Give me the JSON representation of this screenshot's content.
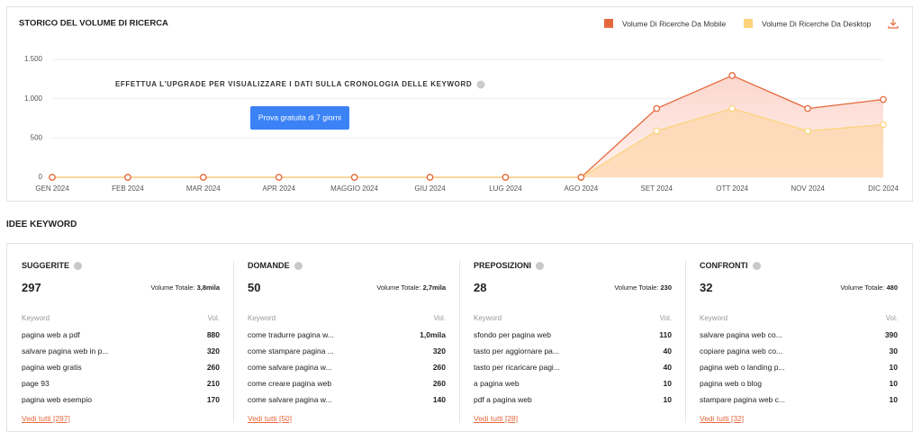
{
  "chart_data": {
    "type": "line",
    "title": "STORICO DEL VOLUME DI RICERCA",
    "categories": [
      "GEN 2024",
      "FEB 2024",
      "MAR 2024",
      "APR 2024",
      "MAGGIO 2024",
      "GIU 2024",
      "LUG 2024",
      "AGO 2024",
      "SET 2024",
      "OTT 2024",
      "NOV 2024",
      "DIC 2024"
    ],
    "series": [
      {
        "name": "Volume Di Ricerche Da Mobile",
        "color": "#e5683d",
        "values": [
          0,
          0,
          0,
          0,
          0,
          0,
          0,
          0,
          875,
          1295,
          875,
          990
        ]
      },
      {
        "name": "Volume Di Ricerche Da Desktop",
        "color": "#fcd37a",
        "values": [
          0,
          0,
          0,
          0,
          0,
          0,
          0,
          0,
          590,
          875,
          590,
          670
        ]
      }
    ],
    "ylim": [
      0,
      1500
    ],
    "yticks": [
      0,
      500,
      {
        "value": 1000,
        "label": "1.000"
      },
      {
        "value": 1500,
        "label": "1.500"
      }
    ],
    "grid": true,
    "legend": "top-right",
    "annotation": "EFFETTUA L'UPGRADE PER VISUALIZZARE I DATI SULLA CRONOLOGIA DELLE KEYWORD",
    "button": "Prova gratuita di 7 giorni"
  },
  "keywords": {
    "title": "IDEE KEYWORD",
    "total_label": "Volume Totale:",
    "columns": [
      "Keyword",
      "Vol."
    ],
    "panels": [
      {
        "title": "SUGGERITE",
        "count": "297",
        "total": "3,8mila",
        "rows": [
          [
            "pagina web a pdf",
            "880"
          ],
          [
            "salvare pagina web in p...",
            "320"
          ],
          [
            "pagina web gratis",
            "260"
          ],
          [
            "page 93",
            "210"
          ],
          [
            "pagina web esempio",
            "170"
          ]
        ],
        "link": "Vedi tutti [297]"
      },
      {
        "title": "DOMANDE",
        "count": "50",
        "total": "2,7mila",
        "rows": [
          [
            "come tradurre pagina w...",
            "1,0mila"
          ],
          [
            "come stampare pagina ...",
            "320"
          ],
          [
            "come salvare pagina w...",
            "260"
          ],
          [
            "come creare pagina web",
            "260"
          ],
          [
            "come salvare pagina w...",
            "140"
          ]
        ],
        "link": "Vedi tutti [50]"
      },
      {
        "title": "PREPOSIZIONI",
        "count": "28",
        "total": "230",
        "rows": [
          [
            "sfondo per pagina web",
            "110"
          ],
          [
            "tasto per aggiornare pa...",
            "40"
          ],
          [
            "tasto per ricaricare pagi...",
            "40"
          ],
          [
            "a pagina web",
            "10"
          ],
          [
            "pdf a pagina web",
            "10"
          ]
        ],
        "link": "Vedi tutti [28]"
      },
      {
        "title": "CONFRONTI",
        "count": "32",
        "total": "480",
        "rows": [
          [
            "salvare pagina web co...",
            "390"
          ],
          [
            "copiare pagina web co...",
            "30"
          ],
          [
            "pagina web o landing p...",
            "10"
          ],
          [
            "pagina web o blog",
            "10"
          ],
          [
            "stampare pagina web c...",
            "10"
          ]
        ],
        "link": "Vedi tutti [32]"
      }
    ]
  }
}
